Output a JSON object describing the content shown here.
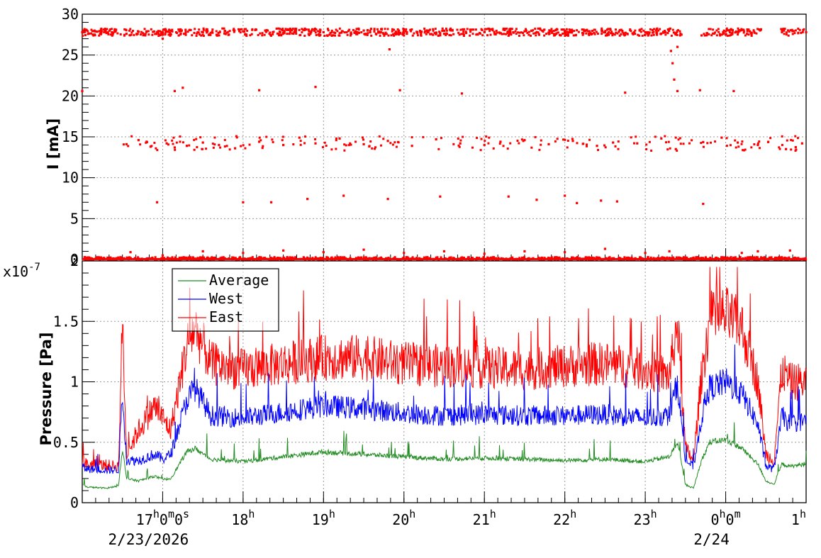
{
  "chart_data": [
    {
      "type": "scatter",
      "ylabel": "I [mA]",
      "ylim": [
        0,
        30
      ],
      "y_ticks": [
        "0",
        "5",
        "10",
        "15",
        "20",
        "25",
        "30"
      ],
      "grid": true,
      "colors": {
        "series": "#ff0000"
      },
      "x": "hours since 2/23/2026 16:00 (time axis shared with pressure panel)",
      "series": [
        {
          "values_note_levels": [
            {
              "level": 27.8,
              "from_h": 16.0,
              "to_h": 25.0
            },
            {
              "level": 14.2,
              "from_h": 16.5,
              "to_h": 24.9
            },
            {
              "level": 0.1,
              "from_h": 16.0,
              "to_h": 25.0
            }
          ],
          "points": [
            [
              16.0,
              27.8
            ],
            [
              16.3,
              27.7
            ],
            [
              16.55,
              27.6
            ],
            [
              16.8,
              27.9
            ],
            [
              17.0,
              27.5
            ],
            [
              17.2,
              27.4
            ],
            [
              17.5,
              27.8
            ],
            [
              18.0,
              27.9
            ],
            [
              18.5,
              27.7
            ],
            [
              19.0,
              27.8
            ],
            [
              19.5,
              28.0
            ],
            [
              20.0,
              27.7
            ],
            [
              20.5,
              27.6
            ],
            [
              21.0,
              27.8
            ],
            [
              21.5,
              27.9
            ],
            [
              22.0,
              27.7
            ],
            [
              22.5,
              27.8
            ],
            [
              23.0,
              27.8
            ],
            [
              23.28,
              27.7
            ],
            [
              23.32,
              25.5
            ],
            [
              23.34,
              24.0
            ],
            [
              23.36,
              22.0
            ],
            [
              23.4,
              26.0
            ],
            [
              23.45,
              27.5
            ],
            [
              23.7,
              27.4
            ],
            [
              24.0,
              27.5
            ],
            [
              24.3,
              27.9
            ],
            [
              24.7,
              27.8
            ],
            [
              25.0,
              27.8
            ],
            [
              16.0,
              20.6
            ],
            [
              17.15,
              20.6
            ],
            [
              17.25,
              21.0
            ],
            [
              18.2,
              20.7
            ],
            [
              18.9,
              21.1
            ],
            [
              19.95,
              20.7
            ],
            [
              20.72,
              20.3
            ],
            [
              22.75,
              20.4
            ],
            [
              23.4,
              20.6
            ],
            [
              23.68,
              20.7
            ],
            [
              24.1,
              20.6
            ],
            [
              19.82,
              25.7
            ],
            [
              17.0,
              27.0
            ],
            [
              16.55,
              14.1
            ],
            [
              16.7,
              14.6
            ],
            [
              16.85,
              13.8
            ],
            [
              17.05,
              14.2
            ],
            [
              17.15,
              13.7
            ],
            [
              17.3,
              13.9
            ],
            [
              17.5,
              14.3
            ],
            [
              17.7,
              14.0
            ],
            [
              17.9,
              13.6
            ],
            [
              18.2,
              14.4
            ],
            [
              18.5,
              14.0
            ],
            [
              18.7,
              14.9
            ],
            [
              18.9,
              14.2
            ],
            [
              19.2,
              14.8
            ],
            [
              19.5,
              14.1
            ],
            [
              19.8,
              14.5
            ],
            [
              20.1,
              13.9
            ],
            [
              20.4,
              14.7
            ],
            [
              20.7,
              14.2
            ],
            [
              21.0,
              14.0
            ],
            [
              21.2,
              14.4
            ],
            [
              21.5,
              14.6
            ],
            [
              21.8,
              14.1
            ],
            [
              22.1,
              14.5
            ],
            [
              22.4,
              13.9
            ],
            [
              22.6,
              14.3
            ],
            [
              22.9,
              14.2
            ],
            [
              23.2,
              14.8
            ],
            [
              23.38,
              13.5
            ],
            [
              23.95,
              14.9
            ],
            [
              24.15,
              14.3
            ],
            [
              24.4,
              14.0
            ],
            [
              24.75,
              13.5
            ],
            [
              24.95,
              14.2
            ],
            [
              16.93,
              7.0
            ],
            [
              18.0,
              7.0
            ],
            [
              18.35,
              7.0
            ],
            [
              18.8,
              7.4
            ],
            [
              19.25,
              7.8
            ],
            [
              19.8,
              7.4
            ],
            [
              20.45,
              7.7
            ],
            [
              21.3,
              7.7
            ],
            [
              21.65,
              7.3
            ],
            [
              22.0,
              7.8
            ],
            [
              22.15,
              6.9
            ],
            [
              22.45,
              7.2
            ],
            [
              22.65,
              7.1
            ],
            [
              23.72,
              6.8
            ],
            [
              16.6,
              0.9
            ],
            [
              17.0,
              0.5
            ],
            [
              17.5,
              1.0
            ],
            [
              18.0,
              0.8
            ],
            [
              18.5,
              1.1
            ],
            [
              19.0,
              0.9
            ],
            [
              19.5,
              1.2
            ],
            [
              20.0,
              0.8
            ],
            [
              20.5,
              1.0
            ],
            [
              21.0,
              0.7
            ],
            [
              21.5,
              1.0
            ],
            [
              22.0,
              0.9
            ],
            [
              22.5,
              1.3
            ],
            [
              23.0,
              0.8
            ],
            [
              23.3,
              1.0
            ],
            [
              24.2,
              0.8
            ],
            [
              24.4,
              1.0
            ],
            [
              24.8,
              1.1
            ]
          ]
        }
      ]
    },
    {
      "type": "line",
      "ylabel": "Pressure [Pa]",
      "y_multiplier": "x10",
      "y_multiplier_exp": "-7",
      "ylim": [
        0,
        2
      ],
      "y_ticks": [
        "0",
        "0.5",
        "1",
        "1.5",
        "2"
      ],
      "grid": true,
      "legend_position": "top-left",
      "x_ticks": [
        {
          "t": 17.0,
          "parts": [
            {
              "b": "17"
            },
            {
              "s": "h"
            },
            {
              "b": "0"
            },
            {
              "s": "m"
            },
            {
              "b": "0"
            },
            {
              "s": "s"
            }
          ]
        },
        {
          "t": 18.0,
          "parts": [
            {
              "b": "18"
            },
            {
              "s": "h"
            }
          ]
        },
        {
          "t": 19.0,
          "parts": [
            {
              "b": "19"
            },
            {
              "s": "h"
            }
          ]
        },
        {
          "t": 20.0,
          "parts": [
            {
              "b": "20"
            },
            {
              "s": "h"
            }
          ]
        },
        {
          "t": 21.0,
          "parts": [
            {
              "b": "21"
            },
            {
              "s": "h"
            }
          ]
        },
        {
          "t": 22.0,
          "parts": [
            {
              "b": "22"
            },
            {
              "s": "h"
            }
          ]
        },
        {
          "t": 23.0,
          "parts": [
            {
              "b": "23"
            },
            {
              "s": "h"
            }
          ]
        },
        {
          "t": 24.0,
          "parts": [
            {
              "b": "0"
            },
            {
              "s": "h"
            },
            {
              "b": "0"
            },
            {
              "s": "m"
            }
          ]
        },
        {
          "t": 25.0,
          "parts": [
            {
              "b": "1"
            },
            {
              "s": "h"
            }
          ]
        }
      ],
      "date_labels": [
        {
          "t": 17.0,
          "text": "2/23/2026"
        },
        {
          "t": 24.0,
          "text": "2/24"
        }
      ],
      "xlim_hours": [
        16.0,
        25.0
      ],
      "series": [
        {
          "name": "Average",
          "color": "#228b22",
          "x": [
            16.0,
            16.05,
            16.3,
            16.45,
            16.5,
            16.55,
            16.7,
            16.9,
            17.0,
            17.1,
            17.3,
            17.4,
            17.6,
            18.0,
            18.5,
            19.0,
            19.5,
            20.0,
            20.5,
            21.0,
            21.5,
            22.0,
            22.5,
            23.0,
            23.3,
            23.4,
            23.5,
            23.6,
            23.7,
            23.8,
            24.0,
            24.2,
            24.4,
            24.5,
            24.6,
            24.7,
            24.8,
            25.0
          ],
          "y": [
            0.15,
            0.13,
            0.12,
            0.14,
            0.45,
            0.2,
            0.18,
            0.22,
            0.19,
            0.2,
            0.42,
            0.45,
            0.36,
            0.34,
            0.38,
            0.42,
            0.4,
            0.38,
            0.36,
            0.37,
            0.36,
            0.35,
            0.36,
            0.34,
            0.38,
            0.5,
            0.15,
            0.12,
            0.35,
            0.5,
            0.52,
            0.45,
            0.32,
            0.18,
            0.15,
            0.32,
            0.3,
            0.32
          ]
        },
        {
          "name": "West",
          "color": "#0000ff",
          "x": [
            16.0,
            16.05,
            16.3,
            16.45,
            16.5,
            16.55,
            16.7,
            16.9,
            17.0,
            17.1,
            17.3,
            17.4,
            17.6,
            18.0,
            18.5,
            19.0,
            19.5,
            20.0,
            20.5,
            21.0,
            21.5,
            22.0,
            22.5,
            23.0,
            23.3,
            23.4,
            23.5,
            23.6,
            23.7,
            23.8,
            24.0,
            24.2,
            24.4,
            24.5,
            24.6,
            24.7,
            24.8,
            25.0
          ],
          "y": [
            0.3,
            0.28,
            0.27,
            0.27,
            0.9,
            0.35,
            0.35,
            0.4,
            0.36,
            0.4,
            0.85,
            0.95,
            0.72,
            0.7,
            0.75,
            0.8,
            0.78,
            0.74,
            0.72,
            0.73,
            0.72,
            0.72,
            0.73,
            0.7,
            0.72,
            1.0,
            0.35,
            0.3,
            0.7,
            0.95,
            1.0,
            0.9,
            0.65,
            0.3,
            0.28,
            0.72,
            0.65,
            0.68
          ]
        },
        {
          "name": "East",
          "color": "#ff0000",
          "x": [
            16.0,
            16.05,
            16.3,
            16.45,
            16.5,
            16.55,
            16.7,
            16.9,
            17.0,
            17.1,
            17.3,
            17.4,
            17.6,
            18.0,
            18.5,
            19.0,
            19.5,
            20.0,
            20.5,
            21.0,
            21.5,
            22.0,
            22.5,
            23.0,
            23.3,
            23.4,
            23.5,
            23.6,
            23.7,
            23.8,
            24.0,
            24.2,
            24.4,
            24.5,
            24.6,
            24.7,
            24.8,
            25.0
          ],
          "y": [
            0.34,
            0.32,
            0.31,
            0.3,
            1.5,
            0.4,
            0.6,
            0.8,
            0.7,
            0.6,
            1.3,
            1.45,
            1.15,
            1.1,
            1.15,
            1.2,
            1.2,
            1.15,
            1.13,
            1.12,
            1.1,
            1.13,
            1.15,
            1.1,
            1.05,
            1.5,
            0.45,
            0.35,
            1.05,
            1.5,
            1.55,
            1.45,
            1.0,
            0.4,
            0.35,
            1.1,
            1.0,
            1.0
          ]
        }
      ]
    }
  ]
}
